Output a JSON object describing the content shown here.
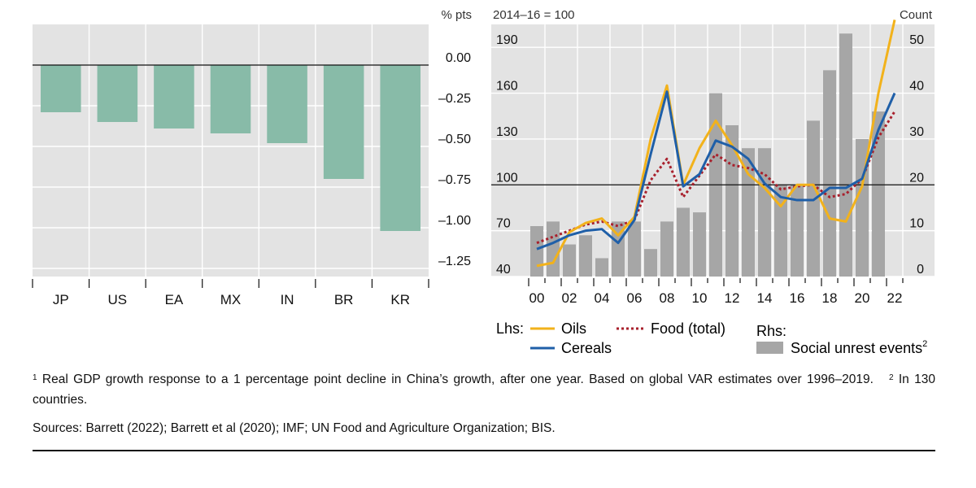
{
  "chart_data": [
    {
      "type": "bar",
      "unit_label": "% pts",
      "categories": [
        "JP",
        "US",
        "EA",
        "MX",
        "IN",
        "BR",
        "KR"
      ],
      "values": [
        -0.29,
        -0.35,
        -0.39,
        -0.42,
        -0.48,
        -0.7,
        -1.02
      ],
      "yticks": [
        0.0,
        -0.25,
        -0.5,
        -0.75,
        -1.0,
        -1.25
      ],
      "ytick_labels": [
        "0.00",
        "–0.25",
        "–0.50",
        "–0.75",
        "–1.00",
        "–1.25"
      ],
      "ylim": [
        -1.3,
        0.25
      ],
      "bar_color": "#88BBA8"
    },
    {
      "type": "line+bar",
      "left_unit_label": "2014–16 = 100",
      "right_unit_label": "Count",
      "x": [
        2000,
        2001,
        2002,
        2003,
        2004,
        2005,
        2006,
        2007,
        2008,
        2009,
        2010,
        2011,
        2012,
        2013,
        2014,
        2015,
        2016,
        2017,
        2018,
        2019,
        2020,
        2021,
        2022
      ],
      "xtick_labels": [
        "00",
        "02",
        "04",
        "06",
        "08",
        "10",
        "12",
        "14",
        "16",
        "18",
        "20",
        "22"
      ],
      "xtick_years": [
        2000,
        2002,
        2004,
        2006,
        2008,
        2010,
        2012,
        2014,
        2016,
        2018,
        2020,
        2022
      ],
      "left_ylim": [
        40,
        205
      ],
      "left_yticks": [
        40,
        70,
        100,
        130,
        160,
        190
      ],
      "right_ylim": [
        0,
        55
      ],
      "right_yticks": [
        0,
        10,
        20,
        30,
        40,
        50
      ],
      "reference_line_left": 100,
      "series": [
        {
          "name": "Oils",
          "axis": "left",
          "style": "solid",
          "color": "#F2B21B",
          "values": [
            47,
            49,
            69,
            75,
            78,
            67,
            79,
            130,
            165,
            100,
            124,
            142,
            126,
            107,
            98,
            86,
            100,
            100,
            78,
            76,
            99,
            160,
            208
          ]
        },
        {
          "name": "Cereals",
          "axis": "left",
          "style": "solid",
          "color": "#1F5FA8",
          "values": [
            58,
            62,
            67,
            70,
            71,
            62,
            77,
            120,
            161,
            99,
            107,
            129,
            125,
            117,
            101,
            92,
            90,
            90,
            98,
            98,
            104,
            136,
            160
          ]
        },
        {
          "name": "Food (total)",
          "axis": "left",
          "style": "dotted",
          "color": "#A8202C",
          "values": [
            62,
            66,
            70,
            74,
            76,
            73,
            77,
            103,
            117,
            92,
            106,
            120,
            113,
            111,
            107,
            97,
            99,
            100,
            92,
            94,
            104,
            131,
            148
          ]
        },
        {
          "name": "Social unrest events",
          "axis": "right",
          "style": "bar",
          "color": "#A6A6A6",
          "values": [
            11,
            12,
            7,
            9,
            4,
            12,
            12,
            6,
            12,
            15,
            14,
            40,
            33,
            28,
            28,
            20,
            20,
            34,
            45,
            53,
            30,
            36,
            0
          ]
        }
      ],
      "legend": {
        "lhs_label": "Lhs:",
        "rhs_label": "Rhs:",
        "oils": "Oils",
        "cereals": "Cereals",
        "food": "Food (total)",
        "unrest": "Social unrest events",
        "unrest_sup": "2"
      }
    }
  ],
  "footnote": {
    "marker1": "1",
    "text1": "Real GDP growth response to a 1 percentage point decline in China’s growth, after one year. Based on global VAR estimates over 1996–2019.",
    "marker2": "2",
    "text2": "In 130 countries."
  },
  "sources": "Sources: Barrett (2022); Barrett et al (2020); IMF; UN Food and Agriculture Organization; BIS."
}
